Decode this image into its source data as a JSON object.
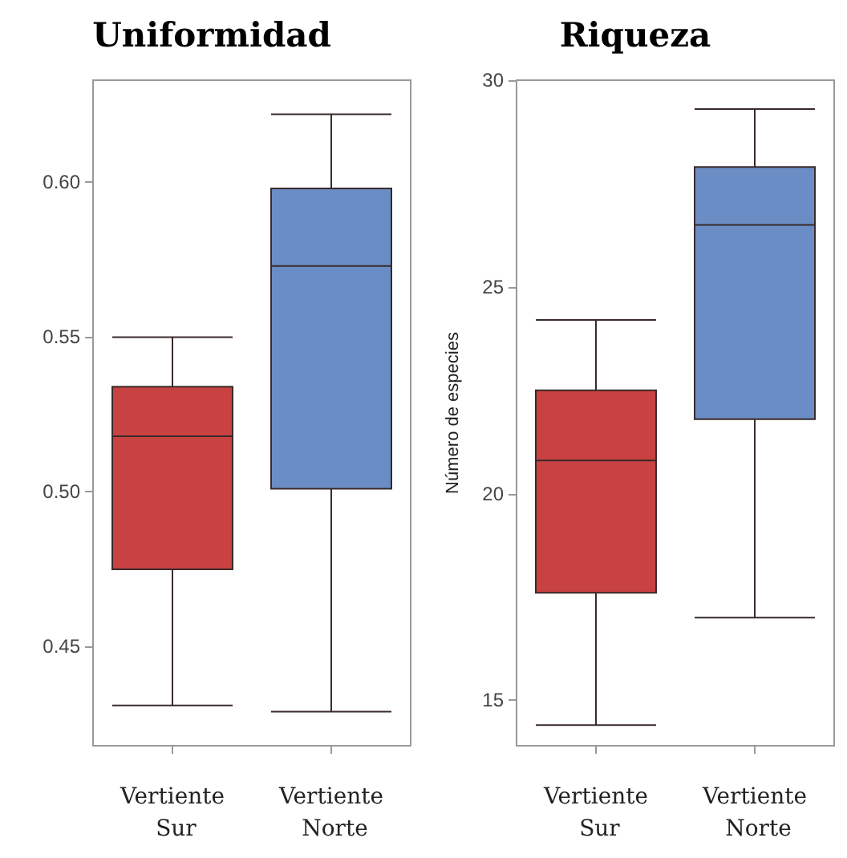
{
  "chart_data": [
    {
      "type": "box",
      "title": "Uniformidad",
      "categories": [
        "Vertiente Sur",
        "Vertiente Norte"
      ],
      "colors": [
        "#c94242",
        "#6b8dc5"
      ],
      "boxes": [
        {
          "low": 0.431,
          "q1": 0.475,
          "median": 0.518,
          "q3": 0.534,
          "high": 0.55
        },
        {
          "low": 0.429,
          "q1": 0.501,
          "median": 0.573,
          "q3": 0.598,
          "high": 0.622
        }
      ],
      "ylim": [
        0.418,
        0.633
      ],
      "yticks": [
        0.45,
        {
          "value": 0.5,
          "label": "0.50"
        },
        0.55,
        {
          "value": 0.6,
          "label": "0.60"
        }
      ],
      "grid": false
    },
    {
      "type": "box",
      "title": "Riqueza",
      "ylabel": "Número de especies",
      "categories": [
        "Vertiente Sur",
        "Vertiente Norte"
      ],
      "colors": [
        "#c94242",
        "#6b8dc5"
      ],
      "boxes": [
        {
          "low": 14.4,
          "q1": 17.6,
          "median": 20.8,
          "q3": 22.5,
          "high": 24.2
        },
        {
          "low": 17.0,
          "q1": 21.8,
          "median": 26.5,
          "q3": 27.9,
          "high": 29.3
        }
      ],
      "ylim": [
        13.9,
        30
      ],
      "yticks": [
        15,
        20,
        25,
        30
      ],
      "grid": false
    }
  ]
}
